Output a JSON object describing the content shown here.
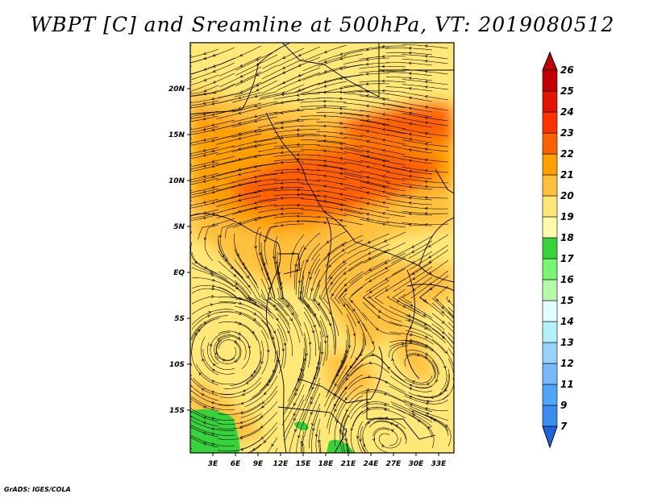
{
  "title": "WBPT [C] and Sreamline at 500hPa, VT: 2019080512",
  "credit": "GrADS: IGES/COLA",
  "map": {
    "lat_labels": [
      "20N",
      "15N",
      "10N",
      "5N",
      "EQ",
      "5S",
      "10S",
      "15S"
    ],
    "lon_labels": [
      "3E",
      "6E",
      "9E",
      "12E",
      "15E",
      "18E",
      "21E",
      "24E",
      "27E",
      "30E",
      "33E"
    ]
  },
  "colorbar": {
    "levels": [
      "7",
      "9",
      "11",
      "12",
      "13",
      "14",
      "15",
      "16",
      "17",
      "18",
      "19",
      "20",
      "21",
      "22",
      "23",
      "24",
      "25",
      "26"
    ],
    "colors": [
      "#1f64dc",
      "#3c8cf0",
      "#50a5f5",
      "#78b9fa",
      "#96d2fa",
      "#b4f0fa",
      "#e1ffff",
      "#b4faaa",
      "#78f573",
      "#37d23c",
      "#fffaaa",
      "#ffe878",
      "#ffc03c",
      "#ffa000",
      "#ff6000",
      "#ff3200",
      "#e11400",
      "#c00000"
    ]
  }
}
